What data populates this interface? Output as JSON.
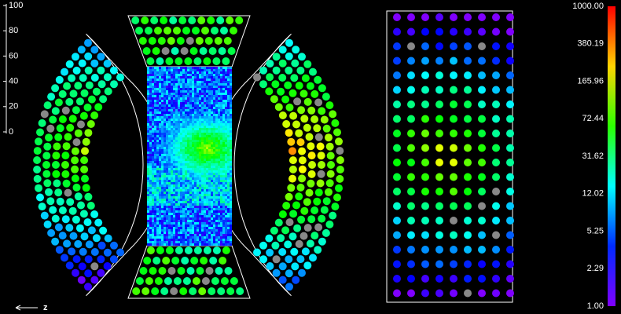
{
  "axis": {
    "ticks": [
      100,
      80,
      60,
      40,
      20,
      0
    ]
  },
  "color_scale": {
    "labels": [
      "1000.00",
      "380.19",
      "165.96",
      "72.44",
      "31.62",
      "12.02",
      "5.25",
      "2.29",
      "1.00"
    ]
  },
  "direction_label": "z"
}
